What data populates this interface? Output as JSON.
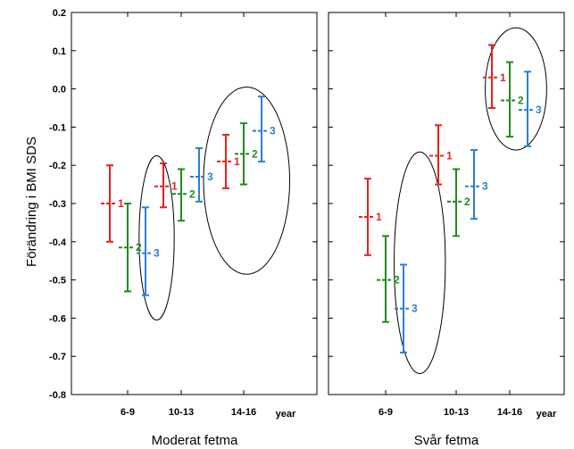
{
  "chart_data": {
    "type": "errorbar",
    "ylabel": "Förändring i BMI SDS",
    "ylim": [
      -0.8,
      0.2
    ],
    "yticks": [
      "0.2",
      "0.1",
      "0.0",
      "-0.1",
      "-0.2",
      "-0.3",
      "-0.4",
      "-0.5",
      "-0.6",
      "-0.7",
      "-0.8"
    ],
    "grid": false,
    "series_colors": {
      "1": "#e8201c",
      "2": "#1f8a1f",
      "3": "#2a7fd4"
    },
    "panels": [
      {
        "title": "Moderat fetma",
        "categories": [
          "6-9",
          "10-13",
          "14-16"
        ],
        "xunit": "year",
        "points": [
          {
            "cat": 0,
            "series": "1",
            "mean": -0.3,
            "low": -0.4,
            "high": -0.2
          },
          {
            "cat": 0,
            "series": "2",
            "mean": -0.415,
            "low": -0.53,
            "high": -0.3
          },
          {
            "cat": 0,
            "series": "3",
            "mean": -0.43,
            "low": -0.54,
            "high": -0.31
          },
          {
            "cat": 1,
            "series": "1",
            "mean": -0.255,
            "low": -0.31,
            "high": -0.195
          },
          {
            "cat": 1,
            "series": "2",
            "mean": -0.275,
            "low": -0.345,
            "high": -0.21
          },
          {
            "cat": 1,
            "series": "3",
            "mean": -0.23,
            "low": -0.295,
            "high": -0.155
          },
          {
            "cat": 2,
            "series": "1",
            "mean": -0.19,
            "low": -0.26,
            "high": -0.12
          },
          {
            "cat": 2,
            "series": "2",
            "mean": -0.17,
            "low": -0.25,
            "high": -0.09
          },
          {
            "cat": 2,
            "series": "3",
            "mean": -0.11,
            "low": -0.19,
            "high": -0.02
          }
        ],
        "ellipses": [
          {
            "cx": 0.5,
            "cy": -0.39,
            "rx": 0.55,
            "ry": 0.215
          },
          {
            "cx": 2.05,
            "cy": -0.24,
            "rx": 1.35,
            "ry": 0.245
          }
        ]
      },
      {
        "title": "Svår fetma",
        "categories": [
          "6-9",
          "10-13",
          "14-16"
        ],
        "xunit": "year",
        "points": [
          {
            "cat": 0,
            "series": "1",
            "mean": -0.335,
            "low": -0.435,
            "high": -0.235
          },
          {
            "cat": 0,
            "series": "2",
            "mean": -0.5,
            "low": -0.61,
            "high": -0.385
          },
          {
            "cat": 0,
            "series": "3",
            "mean": -0.575,
            "low": -0.69,
            "high": -0.46
          },
          {
            "cat": 1,
            "series": "1",
            "mean": -0.175,
            "low": -0.25,
            "high": -0.095
          },
          {
            "cat": 1,
            "series": "2",
            "mean": -0.295,
            "low": -0.385,
            "high": -0.21
          },
          {
            "cat": 1,
            "series": "3",
            "mean": -0.255,
            "low": -0.34,
            "high": -0.16
          },
          {
            "cat": 2,
            "series": "1",
            "mean": 0.03,
            "low": -0.05,
            "high": 0.115
          },
          {
            "cat": 2,
            "series": "2",
            "mean": -0.03,
            "low": -0.125,
            "high": 0.07
          },
          {
            "cat": 2,
            "series": "3",
            "mean": -0.055,
            "low": -0.15,
            "high": 0.045
          }
        ],
        "ellipses": [
          {
            "cx": 0.55,
            "cy": -0.455,
            "rx": 0.75,
            "ry": 0.29
          },
          {
            "cx": 2.1,
            "cy": 0.0,
            "rx": 0.9,
            "ry": 0.16
          }
        ]
      }
    ]
  }
}
